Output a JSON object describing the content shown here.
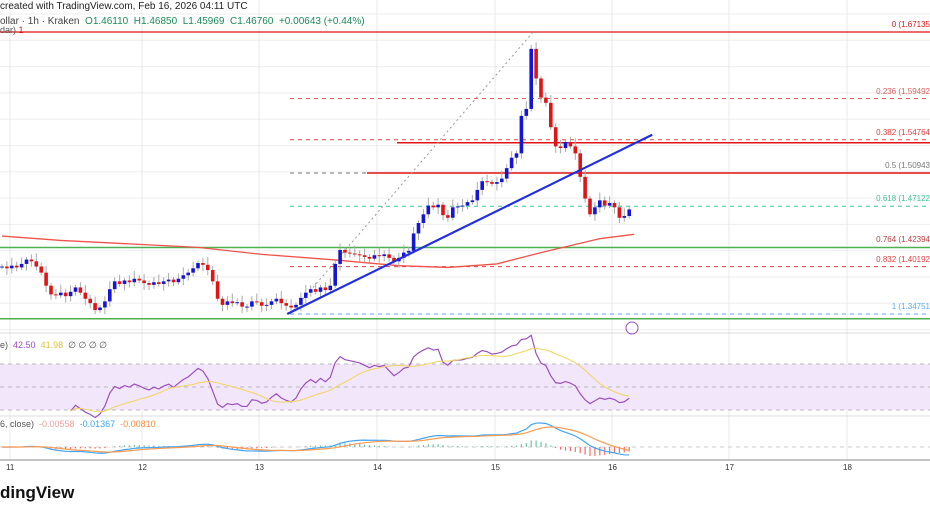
{
  "header": {
    "credit": "created with TradingView.com, Feb 16, 2026 04:11 UTC",
    "symbol": "ollar · 1h · Kraken",
    "open": "O1.46110",
    "high": "H1.46850",
    "low": "L1.45969",
    "close": "C1.46760",
    "change": "+0.00643 (+0.44%)",
    "indicator_line": "dar)",
    "indicator_value": "1"
  },
  "rsi_legend": {
    "label": "e)",
    "rsi": "42.50",
    "ma": "41.98",
    "extra": "∅ ∅ ∅ ∅"
  },
  "macd_legend": {
    "label": "6, close)",
    "hist": "-0.00558",
    "macd": "-0.01367",
    "signal": "-0.00810"
  },
  "logo": "dingView",
  "colors": {
    "up": "#1515d6",
    "down": "#e01414",
    "ma": "#f0534a",
    "trendline": "#2030e0",
    "support": "#4caf50",
    "rsi": "#9c4fc0",
    "rsi_ma": "#f2d45c",
    "rsi_band": "#f2e6fb",
    "macd": "#42a5f5",
    "signal": "#ff9a4d"
  },
  "chart_data": {
    "type": "candlestick",
    "interval": "1h",
    "x_ticks": [
      "11",
      "12",
      "13",
      "14",
      "15",
      "16",
      "17",
      "18"
    ],
    "closes": [
      1.402,
      1.4,
      1.403,
      1.401,
      1.405,
      1.41,
      1.408,
      1.402,
      1.395,
      1.38,
      1.37,
      1.369,
      1.372,
      1.368,
      1.373,
      1.378,
      1.372,
      1.365,
      1.36,
      1.352,
      1.355,
      1.362,
      1.376,
      1.385,
      1.382,
      1.386,
      1.384,
      1.388,
      1.386,
      1.383,
      1.381,
      1.384,
      1.382,
      1.385,
      1.387,
      1.384,
      1.388,
      1.392,
      1.395,
      1.4,
      1.406,
      1.404,
      1.398,
      1.385,
      1.365,
      1.358,
      1.362,
      1.36,
      1.361,
      1.356,
      1.356,
      1.362,
      1.361,
      1.357,
      1.358,
      1.362,
      1.365,
      1.36,
      1.357,
      1.355,
      1.358,
      1.366,
      1.372,
      1.376,
      1.373,
      1.378,
      1.375,
      1.38,
      1.405,
      1.421,
      1.418,
      1.417,
      1.416,
      1.415,
      1.413,
      1.411,
      1.415,
      1.414,
      1.416,
      1.412,
      1.408,
      1.412,
      1.418,
      1.42,
      1.44,
      1.452,
      1.462,
      1.472,
      1.47,
      1.473,
      1.461,
      1.458,
      1.47,
      1.471,
      1.472,
      1.476,
      1.478,
      1.49,
      1.5,
      1.499,
      1.497,
      1.499,
      1.503,
      1.515,
      1.527,
      1.532,
      1.575,
      1.583,
      1.652,
      1.618,
      1.596,
      1.59,
      1.562,
      1.54,
      1.538,
      1.545,
      1.54,
      1.532,
      1.505,
      1.48,
      1.462,
      1.47,
      1.478,
      1.472,
      1.475,
      1.47,
      1.458,
      1.46,
      1.4676
    ],
    "moving_average": [
      [
        0,
        1.437
      ],
      [
        12,
        1.432
      ],
      [
        40,
        1.424
      ],
      [
        53,
        1.416
      ],
      [
        67,
        1.41
      ],
      [
        81,
        1.403
      ],
      [
        91,
        1.401
      ],
      [
        101,
        1.405
      ],
      [
        110,
        1.418
      ],
      [
        122,
        1.434
      ],
      [
        129,
        1.439
      ]
    ],
    "fib_levels": [
      {
        "ratio": "0",
        "price": 1.67135,
        "label": "0 (1.67135",
        "color": "#e01414",
        "style": "solid"
      },
      {
        "ratio": "0.236",
        "price": 1.59492,
        "label": "0.236 (1.59492",
        "color": "#e06060",
        "style": "dashed"
      },
      {
        "ratio": "0.382",
        "price": 1.54764,
        "label": "0.382 (1.54764",
        "color": "#e04040",
        "style": "dashed"
      },
      {
        "ratio": "0.5",
        "price": 1.50943,
        "label": "0.5 (1.50943",
        "color": "#777777",
        "style": "dashed"
      },
      {
        "ratio": "0.618",
        "price": 1.47122,
        "label": "0.618 (1.47122",
        "color": "#3cc39a",
        "style": "dashed"
      },
      {
        "ratio": "0.764",
        "price": 1.42394,
        "label": "0.764 (1.42394",
        "color": "#c04040",
        "style": "dashed"
      },
      {
        "ratio": "0.832",
        "price": 1.40192,
        "label": "0.832 (1.40192",
        "color": "#e04040",
        "style": "dashed"
      },
      {
        "ratio": "1",
        "price": 1.34751,
        "label": "1 (1.34751",
        "color": "#5aaee8",
        "style": "dashed"
      }
    ],
    "resistance_lines": [
      1.5441,
      1.5094
    ],
    "support_lines": [
      1.4239,
      1.342
    ],
    "trendline": [
      [
        58.2,
        1.3475
      ],
      [
        132.7,
        1.5534
      ]
    ],
    "fib_diagonal": [
      [
        58.8,
        1.3475
      ],
      [
        108.4,
        1.6714
      ]
    ],
    "rsi_levels": [
      70,
      50,
      30
    ]
  }
}
